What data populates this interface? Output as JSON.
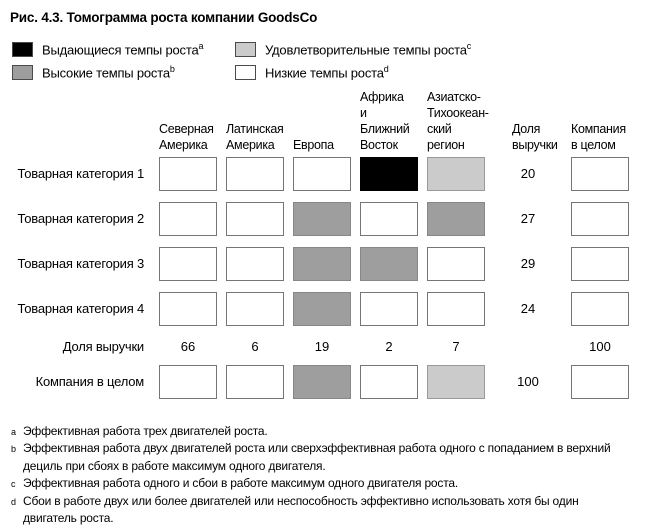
{
  "figure": {
    "title": "Рис. 4.3. Томограмма роста компании GoodsCo"
  },
  "legend": {
    "items": [
      {
        "key": "outstanding",
        "label": "Выдающиеся темпы роста",
        "sup": "a",
        "color": "#000000"
      },
      {
        "key": "high",
        "label": "Высокие темпы роста",
        "sup": "b",
        "color": "#9e9e9e"
      },
      {
        "key": "satisfactory",
        "label": "Удовлетворительные темпы роста",
        "sup": "c",
        "color": "#cbcbcb"
      },
      {
        "key": "low",
        "label": "Низкие темпы роста",
        "sup": "d",
        "color": "#ffffff"
      }
    ]
  },
  "matrix": {
    "column_headers": [
      {
        "label": "Северная Америка",
        "lines": [
          "Северная",
          "Америка"
        ]
      },
      {
        "label": "Латинская Америка",
        "lines": [
          "Латинская",
          "Америка"
        ]
      },
      {
        "label": "Европа",
        "lines": [
          "Европа"
        ]
      },
      {
        "label": "Африка и Ближний Восток",
        "lines": [
          "Африка",
          "и Ближний",
          "Восток"
        ]
      },
      {
        "label": "Азиатско-Тихоокеанский регион",
        "lines": [
          "Азиатско-",
          "Тихоокеан-",
          "ский регион"
        ]
      },
      {
        "label": "Доля выручки",
        "lines": [
          "Доля",
          "выручки"
        ]
      },
      {
        "label": "Компания в целом",
        "lines": [
          "Компания",
          "в целом"
        ]
      }
    ],
    "rows": [
      {
        "label": "Товарная категория 1",
        "cells": [
          "low",
          "low",
          "low",
          "outstanding",
          "satisfactory"
        ],
        "revenue_share": "20",
        "company_cell": "low"
      },
      {
        "label": "Товарная категория 2",
        "cells": [
          "low",
          "low",
          "high",
          "low",
          "high"
        ],
        "revenue_share": "27",
        "company_cell": "low"
      },
      {
        "label": "Товарная категория 3",
        "cells": [
          "low",
          "low",
          "high",
          "high",
          "low"
        ],
        "revenue_share": "29",
        "company_cell": "low"
      },
      {
        "label": "Товарная категория 4",
        "cells": [
          "low",
          "low",
          "high",
          "low",
          "low"
        ],
        "revenue_share": "24",
        "company_cell": "low"
      }
    ],
    "revenue_row": {
      "label": "Доля выручки",
      "values": [
        "66",
        "6",
        "19",
        "2",
        "7"
      ],
      "company_total": "100"
    },
    "company_row": {
      "label": "Компания в целом",
      "cells": [
        "low",
        "low",
        "high",
        "low",
        "satisfactory"
      ],
      "revenue_share": "100",
      "company_cell": "low"
    }
  },
  "footnotes": [
    {
      "marker": "a",
      "text": "Эффективная работа трех двигателей роста."
    },
    {
      "marker": "b",
      "text": "Эффективная работа двух двигателей роста или сверхэффективная работа одного с попаданием в верхний дециль при сбоях в работе максимум одного двигателя."
    },
    {
      "marker": "c",
      "text": "Эффективная работа одного и сбои в работе максимум одного двигателя роста."
    },
    {
      "marker": "d",
      "text": "Сбои в работе двух или более двигателей или неспособность эффективно использовать хотя бы один двигатель роста."
    }
  ],
  "chart_data": {
    "type": "heatmap",
    "title": "Рис. 4.3. Томограмма роста компании GoodsCo",
    "columns": [
      "Северная Америка",
      "Латинская Америка",
      "Европа",
      "Африка и Ближний Восток",
      "Азиатско-Тихоокеанский регион"
    ],
    "rows": [
      "Товарная категория 1",
      "Товарная категория 2",
      "Товарная категория 3",
      "Товарная категория 4",
      "Компания в целом"
    ],
    "ratings": [
      [
        "low",
        "low",
        "low",
        "outstanding",
        "satisfactory"
      ],
      [
        "low",
        "low",
        "high",
        "low",
        "high"
      ],
      [
        "low",
        "low",
        "high",
        "high",
        "low"
      ],
      [
        "low",
        "low",
        "high",
        "low",
        "low"
      ],
      [
        "low",
        "low",
        "high",
        "low",
        "satisfactory"
      ]
    ],
    "rating_labels": {
      "outstanding": "Выдающиеся темпы роста",
      "high": "Высокие темпы роста",
      "satisfactory": "Удовлетворительные темпы роста",
      "low": "Низкие темпы роста"
    },
    "rating_colors": {
      "outstanding": "#000000",
      "high": "#9e9e9e",
      "satisfactory": "#cbcbcb",
      "low": "#ffffff"
    },
    "revenue_share_by_category": [
      20,
      27,
      29,
      24
    ],
    "revenue_share_by_region": [
      66,
      6,
      19,
      2,
      7
    ],
    "company_revenue_share_total": 100,
    "legend_position": "top"
  }
}
